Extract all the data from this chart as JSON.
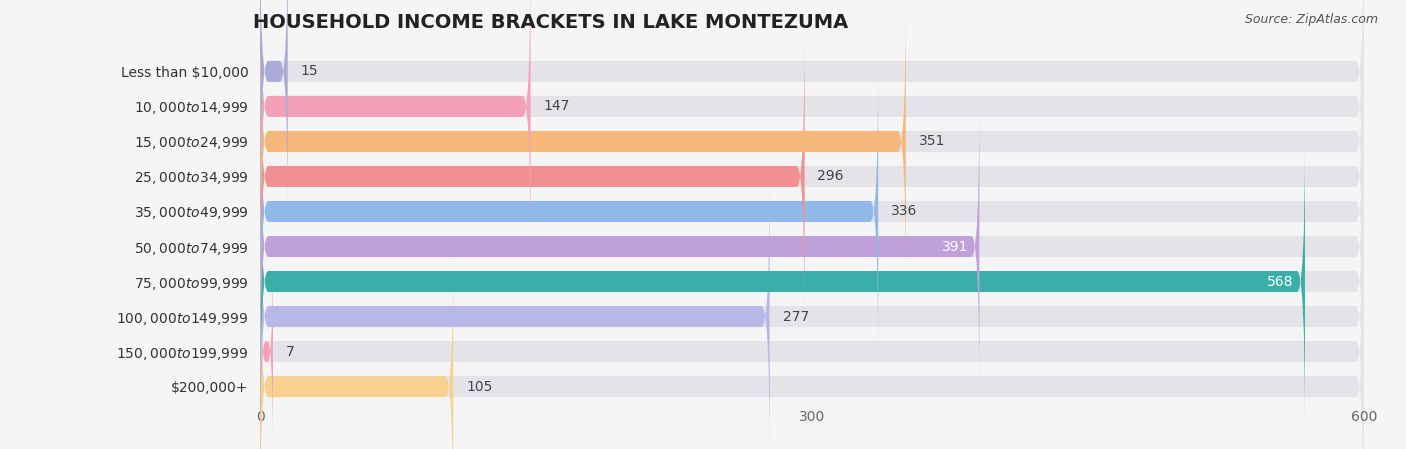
{
  "title": "HOUSEHOLD INCOME BRACKETS IN LAKE MONTEZUMA",
  "source": "Source: ZipAtlas.com",
  "categories": [
    "Less than $10,000",
    "$10,000 to $14,999",
    "$15,000 to $24,999",
    "$25,000 to $34,999",
    "$35,000 to $49,999",
    "$50,000 to $74,999",
    "$75,000 to $99,999",
    "$100,000 to $149,999",
    "$150,000 to $199,999",
    "$200,000+"
  ],
  "values": [
    15,
    147,
    351,
    296,
    336,
    391,
    568,
    277,
    7,
    105
  ],
  "bar_colors": [
    "#aaaad8",
    "#f4a0b8",
    "#f5b87a",
    "#f09090",
    "#90b8e8",
    "#c0a0d8",
    "#3aafaa",
    "#b8b8e8",
    "#f4a0b8",
    "#f8d090"
  ],
  "label_inside_white": [
    5,
    6
  ],
  "background_color": "#f5f5f5",
  "bar_bg_color": "#e4e4e8",
  "xlim": [
    0,
    600
  ],
  "xticks": [
    0,
    300,
    600
  ],
  "title_fontsize": 14,
  "label_fontsize": 10,
  "value_fontsize": 10,
  "bar_height": 0.6
}
